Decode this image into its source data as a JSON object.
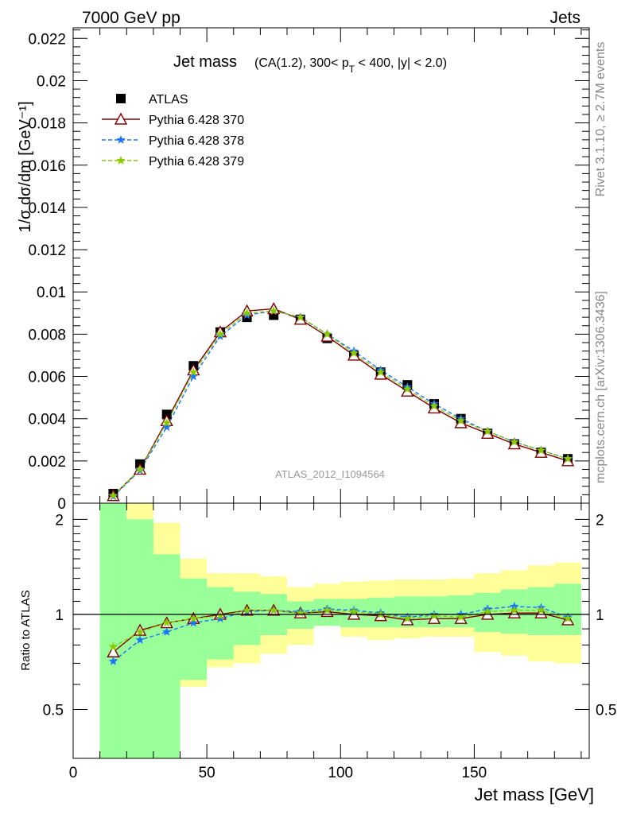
{
  "header": {
    "left": "7000 GeV pp",
    "right": "Jets"
  },
  "side": {
    "top": "Rivet 3.1.10, ≥ 2.7M events",
    "bottom": "mcplots.cern.ch [arXiv:1306.3436]"
  },
  "watermark": "ATLAS_2012_I1094564",
  "chart_data": [
    {
      "type": "scatter",
      "title": "Jet mass",
      "subtitle": "(CA(1.2), 300< p_T < 400, |y| < 2.0)",
      "title_parts": {
        "main": "Jet mass",
        "pre": "(CA(1.2), 300< p",
        "sub": "T",
        "post": " < 400, |y| < 2.0)"
      },
      "ylabel": "1/σ dσ/dm [GeV⁻¹]",
      "xlim": [
        0,
        193
      ],
      "ylim": [
        0,
        0.0225
      ],
      "yticks": [
        "0",
        "0.002",
        "0.004",
        "0.006",
        "0.008",
        "0.01",
        "0.012",
        "0.014",
        "0.016",
        "0.018",
        "0.02",
        "0.022"
      ],
      "legend_position": "top-left",
      "x": [
        15,
        25,
        35,
        45,
        55,
        65,
        75,
        85,
        95,
        105,
        115,
        125,
        135,
        145,
        155,
        165,
        175,
        185
      ],
      "series": [
        {
          "name": "ATLAS",
          "color": "#000000",
          "marker": "square",
          "values": [
            0.00045,
            0.00185,
            0.0042,
            0.0065,
            0.0081,
            0.0088,
            0.0089,
            0.0087,
            0.0078,
            0.007,
            0.0062,
            0.0056,
            0.0047,
            0.004,
            0.0033,
            0.0028,
            0.0024,
            0.0021
          ]
        },
        {
          "name": "Pythia 6.428 370",
          "color": "#800000",
          "marker": "triangle",
          "values": [
            0.00035,
            0.0016,
            0.0039,
            0.0063,
            0.0081,
            0.0091,
            0.0092,
            0.0087,
            0.0079,
            0.007,
            0.0061,
            0.0053,
            0.0045,
            0.0038,
            0.0033,
            0.0028,
            0.0024,
            0.002
          ]
        },
        {
          "name": "Pythia 6.428 378",
          "color": "#1a75ff",
          "marker": "star",
          "values": [
            0.00032,
            0.00155,
            0.0036,
            0.006,
            0.0079,
            0.0089,
            0.0091,
            0.0088,
            0.008,
            0.0072,
            0.0063,
            0.0055,
            0.0047,
            0.004,
            0.0034,
            0.0029,
            0.0025,
            0.0021
          ]
        },
        {
          "name": "Pythia 6.428 379",
          "color": "#88cc00",
          "marker": "star",
          "values": [
            0.00036,
            0.0016,
            0.0038,
            0.0062,
            0.008,
            0.009,
            0.0091,
            0.0088,
            0.008,
            0.0071,
            0.0062,
            0.0054,
            0.0046,
            0.0039,
            0.0034,
            0.0029,
            0.0025,
            0.0021
          ]
        }
      ]
    },
    {
      "type": "line",
      "ylabel": "Ratio to ATLAS",
      "xlabel": "Jet mass [GeV]",
      "xlim": [
        0,
        193
      ],
      "ylim": [
        0.35,
        2.25
      ],
      "yticks": [
        "0.5",
        "1",
        "2"
      ],
      "xticks": [
        "0",
        "50",
        "100",
        "150"
      ],
      "x": [
        15,
        25,
        35,
        45,
        55,
        65,
        75,
        85,
        95,
        105,
        115,
        125,
        135,
        145,
        155,
        165,
        175,
        185
      ],
      "bins": [
        [
          10,
          20
        ],
        [
          20,
          30
        ],
        [
          30,
          40
        ],
        [
          40,
          50
        ],
        [
          50,
          60
        ],
        [
          60,
          70
        ],
        [
          70,
          80
        ],
        [
          80,
          90
        ],
        [
          90,
          100
        ],
        [
          100,
          110
        ],
        [
          110,
          120
        ],
        [
          120,
          130
        ],
        [
          130,
          140
        ],
        [
          140,
          150
        ],
        [
          150,
          160
        ],
        [
          160,
          170
        ],
        [
          170,
          180
        ],
        [
          180,
          190
        ]
      ],
      "band_inner": {
        "color": "#99ff99",
        "lo": [
          0.3,
          0.3,
          0.3,
          0.62,
          0.72,
          0.8,
          0.86,
          0.9,
          0.92,
          0.91,
          0.91,
          0.91,
          0.91,
          0.91,
          0.88,
          0.87,
          0.86,
          0.86
        ],
        "hi": [
          2.3,
          2.0,
          1.55,
          1.3,
          1.22,
          1.18,
          1.16,
          1.1,
          1.12,
          1.12,
          1.13,
          1.14,
          1.14,
          1.15,
          1.17,
          1.2,
          1.22,
          1.25
        ]
      },
      "band_outer": {
        "color": "#ffff99",
        "lo": [
          0.3,
          0.3,
          0.3,
          0.59,
          0.68,
          0.7,
          0.75,
          0.8,
          0.92,
          0.85,
          0.83,
          0.84,
          0.85,
          0.85,
          0.76,
          0.74,
          0.71,
          0.7
        ],
        "hi": [
          2.3,
          2.3,
          1.95,
          1.5,
          1.35,
          1.35,
          1.32,
          1.22,
          1.25,
          1.27,
          1.28,
          1.29,
          1.29,
          1.3,
          1.35,
          1.38,
          1.43,
          1.46
        ]
      },
      "series": [
        {
          "name": "Pythia 6.428 370",
          "color": "#800000",
          "marker": "triangle",
          "values": [
            0.76,
            0.89,
            0.94,
            0.97,
            1.0,
            1.03,
            1.03,
            1.01,
            1.02,
            1.0,
            0.99,
            0.96,
            0.97,
            0.97,
            1.0,
            1.01,
            1.01,
            0.96
          ]
        },
        {
          "name": "Pythia 6.428 378",
          "color": "#1a75ff",
          "marker": "star",
          "values": [
            0.71,
            0.83,
            0.88,
            0.94,
            0.97,
            1.02,
            1.03,
            1.02,
            1.04,
            1.03,
            1.01,
            0.98,
            1.0,
            1.0,
            1.04,
            1.06,
            1.05,
            0.98
          ]
        },
        {
          "name": "Pythia 6.428 379",
          "color": "#88cc00",
          "marker": "star",
          "values": [
            0.79,
            0.88,
            0.94,
            0.97,
            0.99,
            1.03,
            1.03,
            1.01,
            1.03,
            1.02,
            1.0,
            0.97,
            0.99,
            0.98,
            1.02,
            1.03,
            1.03,
            0.97
          ]
        }
      ]
    }
  ]
}
